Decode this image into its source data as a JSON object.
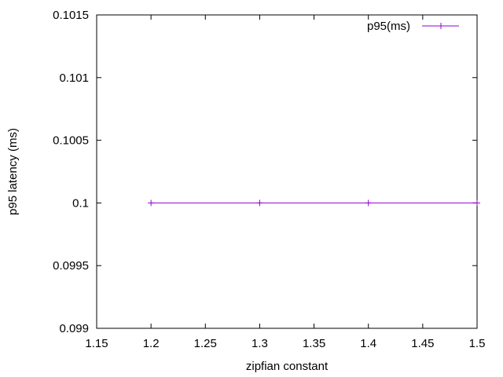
{
  "chart_data": {
    "type": "line",
    "title": "",
    "xlabel": "zipfian constant",
    "ylabel": "p95 latency (ms)",
    "xlim": [
      1.15,
      1.5
    ],
    "ylim": [
      0.099,
      0.1015
    ],
    "x_ticks": [
      "1.15",
      "1.2",
      "1.25",
      "1.3",
      "1.35",
      "1.4",
      "1.45",
      "1.5"
    ],
    "y_ticks": [
      "0.099",
      "0.0995",
      "0.1",
      "0.1005",
      "0.101",
      "0.1015"
    ],
    "grid": false,
    "legend_position": "top-right",
    "series": [
      {
        "name": "p95(ms)",
        "color": "#9400d3",
        "marker": "plus",
        "x": [
          1.2,
          1.3,
          1.4,
          1.5
        ],
        "y": [
          0.1,
          0.1,
          0.1,
          0.1
        ]
      }
    ]
  }
}
